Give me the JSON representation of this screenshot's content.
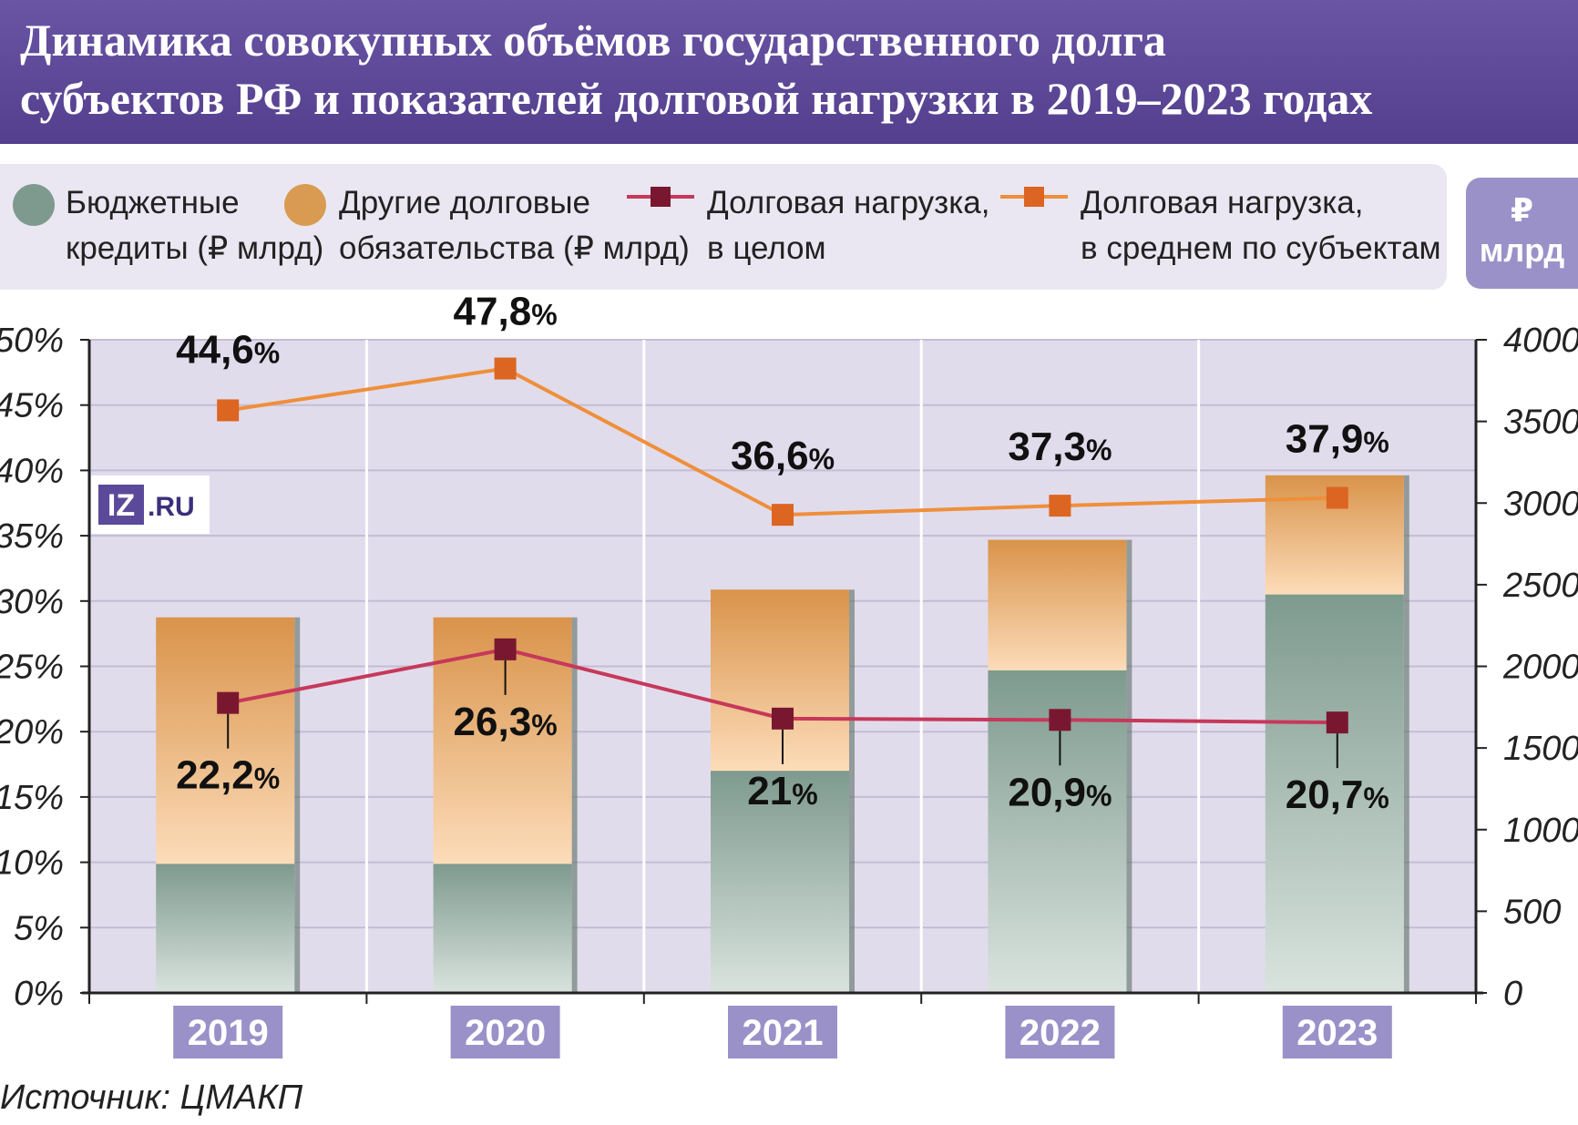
{
  "header": {
    "title_line1": "Динамика совокупных объёмов государственного долга",
    "title_line2": "субъектов РФ и показателей долговой нагрузки в 2019–2023 годах"
  },
  "legend": {
    "budget_line1": "Бюджетные",
    "budget_line2": "кредиты (₽ млрд)",
    "other_line1": "Другие долговые",
    "other_line2": "обязательства (₽ млрд)",
    "load_total_line1": "Долговая нагрузка,",
    "load_total_line2": "в целом",
    "load_avg_line1": "Долговая нагрузка,",
    "load_avg_line2": "в среднем по субъектам",
    "unit_line1": "₽",
    "unit_line2": "млрд"
  },
  "logo": {
    "text_iz": "IZ",
    "text_ru": ".RU"
  },
  "source": "Источник: ЦМАКП",
  "colors": {
    "budget": "#7e9a8e",
    "other": "#e2a05a",
    "load_total": "#7a1730",
    "load_total_line": "#c7385a",
    "load_avg": "#dc6522",
    "load_avg_line": "#ef8f3a",
    "plot_bg": "#e1dcec",
    "year_box": "#9b91c9"
  },
  "chart_data": {
    "type": "bar",
    "categories": [
      "2019",
      "2020",
      "2021",
      "2022",
      "2023"
    ],
    "left_axis": {
      "min": 0,
      "max": 50,
      "ticks": [
        "0%",
        "5%",
        "10%",
        "15%",
        "20%",
        "25%",
        "30%",
        "35%",
        "40%",
        "45%",
        "50%"
      ]
    },
    "right_axis": {
      "min": 0,
      "max": 4000,
      "ticks": [
        "0",
        "500",
        "1000",
        "1500",
        "2000",
        "2500",
        "3000",
        "3500",
        "4000"
      ]
    },
    "series": [
      {
        "name": "Бюджетные кредиты (₽ млрд)",
        "kind": "stacked-bar",
        "axis": "right",
        "values": [
          790,
          790,
          1360,
          1975,
          2440
        ]
      },
      {
        "name": "Другие долговые обязательства (₽ млрд)",
        "kind": "stacked-bar",
        "axis": "right",
        "values": [
          1510,
          1510,
          1110,
          800,
          730
        ]
      },
      {
        "name": "Долговая нагрузка, в целом",
        "kind": "line",
        "axis": "left",
        "values": [
          22.2,
          26.3,
          21,
          20.9,
          20.7
        ],
        "labels": [
          "22,2",
          "26,3",
          "21",
          "20,9",
          "20,7"
        ]
      },
      {
        "name": "Долговая нагрузка, в среднем по субъектам",
        "kind": "line",
        "axis": "left",
        "values": [
          44.6,
          47.8,
          36.6,
          37.3,
          37.9
        ],
        "labels": [
          "44,6",
          "47,8",
          "36,6",
          "37,3",
          "37,9"
        ]
      }
    ],
    "label_suffix": "%"
  }
}
